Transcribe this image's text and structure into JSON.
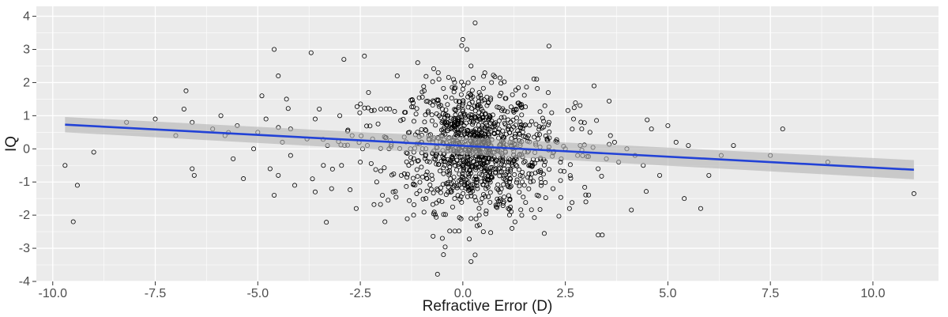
{
  "chart_data": {
    "type": "scatter",
    "title": "",
    "xlabel": "Refractive Error (D)",
    "ylabel": "IQ",
    "xlim": [
      -10.4,
      11.6
    ],
    "ylim": [
      -4,
      4.3
    ],
    "x_ticks": [
      -10.0,
      -7.5,
      -5.0,
      -2.5,
      0.0,
      2.5,
      5.0,
      7.5,
      10.0
    ],
    "x_tick_labels": [
      "-10.0",
      "-7.5",
      "-5.0",
      "-2.5",
      "0.0",
      "2.5",
      "5.0",
      "7.5",
      "10.0"
    ],
    "y_ticks": [
      -4,
      -3,
      -2,
      -1,
      0,
      1,
      2,
      3,
      4
    ],
    "y_tick_labels": [
      "-4",
      "-3",
      "-2",
      "-1",
      "0",
      "1",
      "2",
      "3",
      "4"
    ],
    "grid": true,
    "legend": "none",
    "colors": {
      "panel": "#ebebeb",
      "grid": "#ffffff",
      "point": "#000000",
      "fit_line": "#2242d6",
      "ci_band": "#b3b3b3"
    },
    "fit": {
      "x": [
        -9.7,
        11.0
      ],
      "y": [
        0.73,
        -0.63
      ],
      "ci_lower": [
        0.5,
        -0.92
      ],
      "ci_upper": [
        0.96,
        -0.34
      ]
    },
    "points": {
      "x": [
        -9.7,
        -9.4,
        -9.5,
        -9.0,
        -8.2,
        -7.5,
        -7.0,
        -6.8,
        -6.75,
        -6.6,
        -6.55,
        -6.6,
        -6.1,
        -5.9,
        -5.8,
        -5.6,
        -5.5,
        -5.35,
        -5.1,
        -5.0,
        -4.9,
        -4.8,
        -4.7,
        -4.6,
        -4.5,
        -4.4,
        -4.3,
        -4.2,
        -4.6,
        -4.5,
        -4.2,
        -4.1,
        -3.8,
        -3.7,
        -3.6,
        -3.6,
        -3.5,
        -3.4,
        -3.3,
        -3.2,
        -3.0,
        -2.9,
        -2.7,
        -2.6,
        -2.5,
        -2.4,
        -2.3,
        -2.2,
        -2.1,
        -2.0,
        -1.9,
        -1.8,
        -1.7,
        -1.6,
        -1.5,
        -1.4,
        -1.3,
        -1.2,
        -1.1,
        -1.0,
        -0.9,
        -0.8,
        -0.7,
        -0.6,
        -0.5,
        -0.4,
        -0.3,
        -0.2,
        -0.1,
        0.0,
        0.1,
        0.2,
        0.3,
        0.4,
        0.5,
        0.6,
        0.7,
        0.8,
        0.9,
        1.0,
        1.1,
        1.2,
        1.3,
        1.4,
        1.5,
        1.6,
        1.7,
        1.8,
        1.9,
        2.0,
        2.1,
        2.2,
        2.3,
        2.4,
        2.5,
        2.6,
        2.7,
        2.8,
        2.9,
        3.0,
        3.1,
        3.2,
        3.3,
        3.4,
        3.5,
        3.6,
        3.7,
        3.8,
        4.0,
        4.2,
        4.4,
        4.6,
        4.8,
        5.0,
        5.2,
        5.4,
        5.5,
        5.8,
        6.0,
        6.3,
        6.6,
        7.5,
        7.8,
        8.9,
        11.0,
        0.3,
        0.2,
        0.1,
        0.35,
        0.4,
        -0.2,
        0.0,
        0.2,
        -0.35,
        2.1,
        3.3,
        0.25,
        0.3
      ],
      "y": [
        -0.5,
        -1.1,
        -2.2,
        -0.1,
        0.8,
        0.9,
        0.4,
        1.2,
        1.75,
        -0.6,
        -0.8,
        0.8,
        0.6,
        1.0,
        0.4,
        -0.3,
        0.7,
        -0.9,
        0.0,
        0.5,
        1.6,
        0.9,
        -0.6,
        -1.4,
        -0.8,
        0.2,
        1.5,
        -0.2,
        3.0,
        2.2,
        0.6,
        -1.1,
        0.3,
        2.9,
        -1.3,
        0.9,
        1.2,
        -0.5,
        0.1,
        -1.2,
        1.0,
        2.7,
        0.4,
        -1.8,
        -0.4,
        2.8,
        1.7,
        0.3,
        -1.0,
        1.2,
        -2.2,
        0.0,
        -1.3,
        2.2,
        -0.8,
        1.1,
        0.5,
        -2.0,
        2.6,
        0.2,
        -1.5,
        1.4,
        -0.3,
        2.3,
        -2.7,
        0.8,
        -0.9,
        2.0,
        -1.1,
        3.3,
        -0.4,
        2.5,
        -3.2,
        1.7,
        -2.5,
        0.3,
        2.0,
        -0.7,
        1.6,
        -1.6,
        0.6,
        -2.4,
        1.2,
        0.1,
        -1.1,
        0.4,
        -0.5,
        2.1,
        -0.9,
        1.3,
        0.8,
        -1.2,
        0.2,
        -0.3,
        0.0,
        -1.8,
        0.9,
        -0.2,
        0.6,
        -1.6,
        0.5,
        1.9,
        -0.6,
        -2.6,
        -0.3,
        0.4,
        0.2,
        -0.4,
        0.0,
        -0.2,
        -0.5,
        0.6,
        -0.8,
        0.7,
        0.2,
        -1.5,
        0.1,
        -1.8,
        -0.8,
        -0.2,
        0.1,
        -0.2,
        0.6,
        -0.4,
        -1.35,
        3.8,
        -3.4,
        3.0,
        1.3,
        -2.0,
        -1.5,
        1.8,
        -2.1,
        0.1,
        3.1,
        -2.6,
        0.3,
        -0.5
      ]
    }
  }
}
